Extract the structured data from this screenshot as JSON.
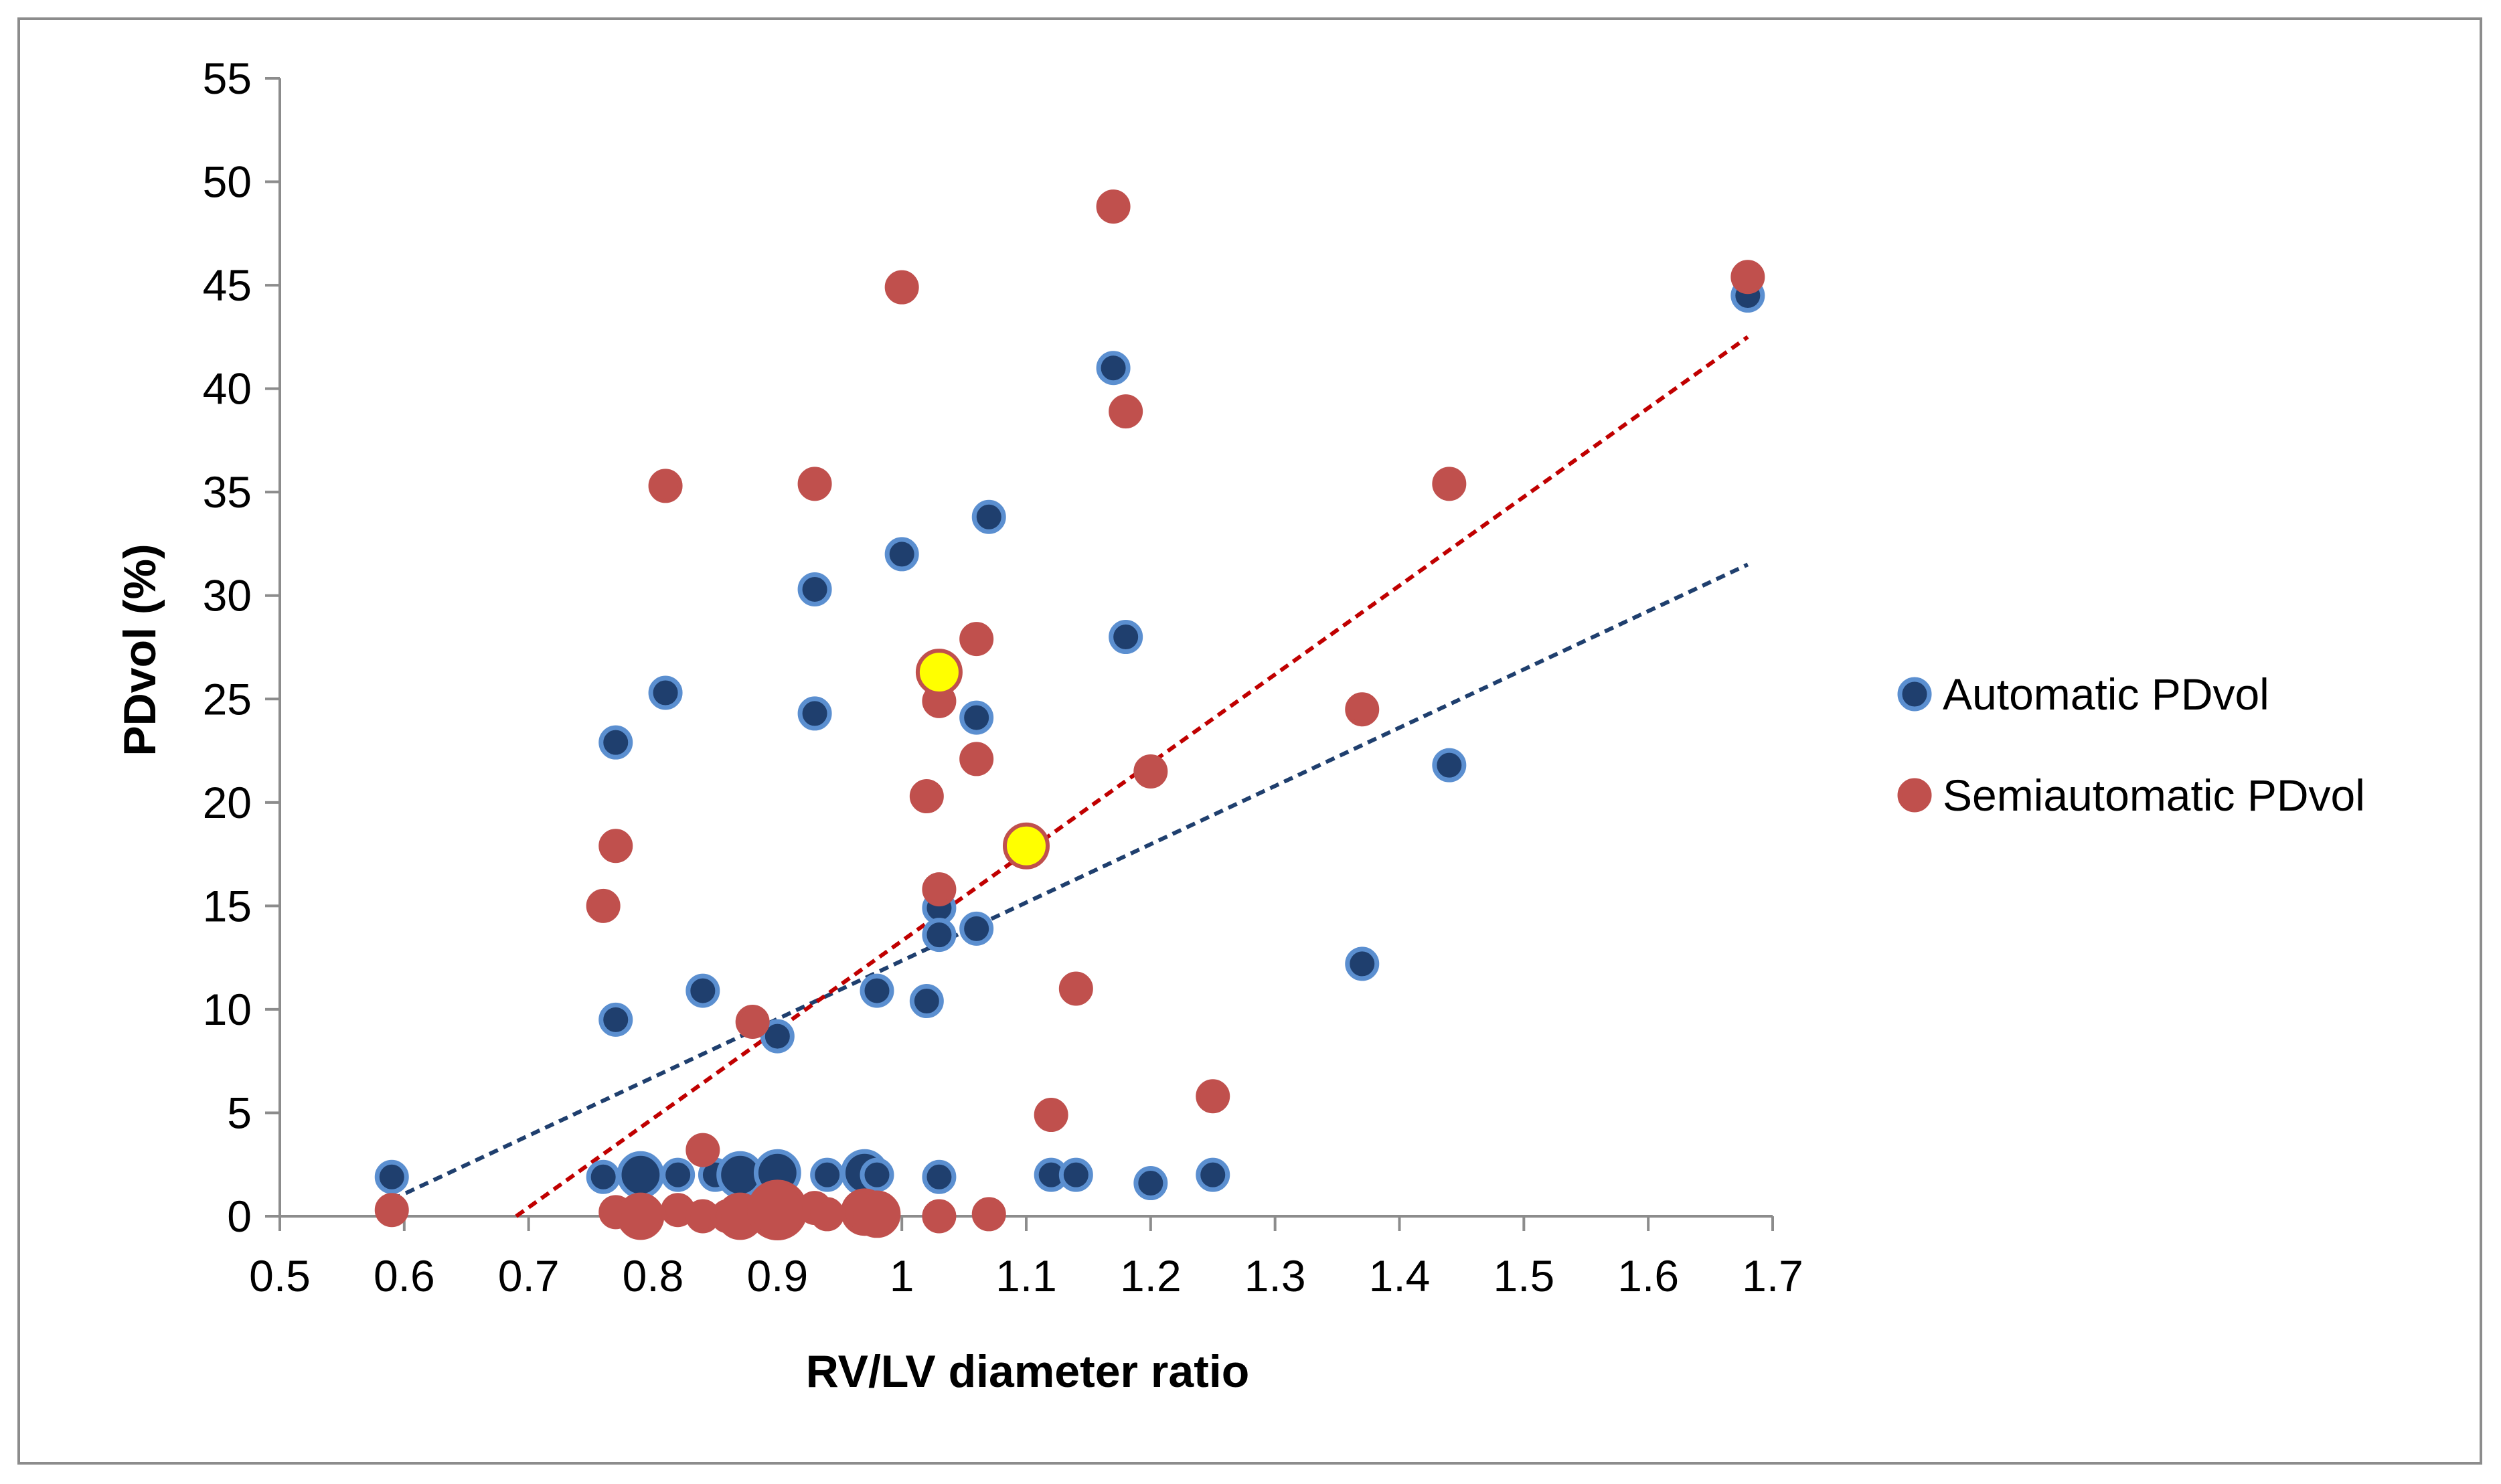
{
  "chart_data": {
    "type": "scatter",
    "title": "",
    "xlabel": "RV/LV diameter ratio",
    "ylabel": "PDvol (%)",
    "xlim": [
      0.5,
      1.7
    ],
    "ylim": [
      0,
      55
    ],
    "x_ticks": [
      "0.5",
      "0.6",
      "0.7",
      "0.8",
      "0.9",
      "1",
      "1.1",
      "1.2",
      "1.3",
      "1.4",
      "1.5",
      "1.6",
      "1.7"
    ],
    "y_ticks": [
      "0",
      "5",
      "10",
      "15",
      "20",
      "25",
      "30",
      "35",
      "40",
      "45",
      "50",
      "55"
    ],
    "grid": false,
    "legend_position": "right",
    "series": [
      {
        "name": "Automatic PDvol",
        "color": "#1f3f6e",
        "edge_color": "#5b8fd0",
        "trendline_color": "#1f3f6e",
        "trendline": {
          "x": [
            0.59,
            1.68
          ],
          "y": [
            0.8,
            31.5
          ]
        },
        "points": [
          {
            "x": 0.59,
            "y": 1.9,
            "size": 1
          },
          {
            "x": 0.76,
            "y": 1.9,
            "size": 1
          },
          {
            "x": 0.77,
            "y": 22.9,
            "size": 1
          },
          {
            "x": 0.77,
            "y": 9.5,
            "size": 1
          },
          {
            "x": 0.79,
            "y": 2.0,
            "size": 1.45
          },
          {
            "x": 0.81,
            "y": 25.3,
            "size": 1
          },
          {
            "x": 0.82,
            "y": 2.0,
            "size": 1
          },
          {
            "x": 0.84,
            "y": 10.9,
            "size": 1
          },
          {
            "x": 0.85,
            "y": 2.0,
            "size": 1
          },
          {
            "x": 0.87,
            "y": 2.0,
            "size": 1.45
          },
          {
            "x": 0.9,
            "y": 2.1,
            "size": 1.45
          },
          {
            "x": 0.9,
            "y": 8.7,
            "size": 1
          },
          {
            "x": 0.93,
            "y": 30.3,
            "size": 1
          },
          {
            "x": 0.93,
            "y": 24.3,
            "size": 1
          },
          {
            "x": 0.94,
            "y": 2.0,
            "size": 1
          },
          {
            "x": 0.97,
            "y": 2.1,
            "size": 1.45
          },
          {
            "x": 0.98,
            "y": 2.0,
            "size": 1
          },
          {
            "x": 0.98,
            "y": 10.9,
            "size": 1
          },
          {
            "x": 1.0,
            "y": 32.0,
            "size": 1
          },
          {
            "x": 1.02,
            "y": 10.4,
            "size": 1
          },
          {
            "x": 1.03,
            "y": 14.9,
            "size": 1
          },
          {
            "x": 1.03,
            "y": 13.6,
            "size": 1
          },
          {
            "x": 1.03,
            "y": 1.9,
            "size": 1
          },
          {
            "x": 1.06,
            "y": 24.1,
            "size": 1
          },
          {
            "x": 1.06,
            "y": 13.9,
            "size": 1
          },
          {
            "x": 1.07,
            "y": 33.8,
            "size": 1
          },
          {
            "x": 1.12,
            "y": 2.0,
            "size": 1
          },
          {
            "x": 1.14,
            "y": 2.0,
            "size": 1
          },
          {
            "x": 1.17,
            "y": 41.0,
            "size": 1
          },
          {
            "x": 1.18,
            "y": 28.0,
            "size": 1
          },
          {
            "x": 1.2,
            "y": 1.6,
            "size": 1
          },
          {
            "x": 1.25,
            "y": 2.0,
            "size": 1
          },
          {
            "x": 1.37,
            "y": 12.2,
            "size": 1
          },
          {
            "x": 1.44,
            "y": 21.8,
            "size": 1
          },
          {
            "x": 1.68,
            "y": 44.5,
            "size": 1
          }
        ]
      },
      {
        "name": "Semiautomatic PDvol",
        "color": "#c0504d",
        "edge_color": "#c0504d",
        "trendline_color": "#c00000",
        "trendline": {
          "x": [
            0.69,
            1.68
          ],
          "y": [
            0.0,
            42.5
          ]
        },
        "points": [
          {
            "x": 0.59,
            "y": 0.3,
            "size": 1
          },
          {
            "x": 0.76,
            "y": 15.0,
            "size": 1
          },
          {
            "x": 0.77,
            "y": 17.9,
            "size": 1
          },
          {
            "x": 0.77,
            "y": 0.2,
            "size": 1
          },
          {
            "x": 0.79,
            "y": 0.0,
            "size": 1.45
          },
          {
            "x": 0.81,
            "y": 35.3,
            "size": 1
          },
          {
            "x": 0.82,
            "y": 0.3,
            "size": 1
          },
          {
            "x": 0.84,
            "y": 3.2,
            "size": 1
          },
          {
            "x": 0.84,
            "y": 0.0,
            "size": 1
          },
          {
            "x": 0.86,
            "y": 0.0,
            "size": 1
          },
          {
            "x": 0.87,
            "y": 0.0,
            "size": 1.45
          },
          {
            "x": 0.88,
            "y": 9.4,
            "size": 1
          },
          {
            "x": 0.9,
            "y": 0.3,
            "size": 1.9
          },
          {
            "x": 0.93,
            "y": 35.4,
            "size": 1
          },
          {
            "x": 0.93,
            "y": 0.4,
            "size": 1
          },
          {
            "x": 0.94,
            "y": 0.1,
            "size": 1
          },
          {
            "x": 0.97,
            "y": 0.2,
            "size": 1.45
          },
          {
            "x": 0.98,
            "y": 0.1,
            "size": 1.45
          },
          {
            "x": 1.0,
            "y": 44.9,
            "size": 1
          },
          {
            "x": 1.02,
            "y": 20.3,
            "size": 1
          },
          {
            "x": 1.03,
            "y": 24.9,
            "size": 1
          },
          {
            "x": 1.03,
            "y": 15.8,
            "size": 1
          },
          {
            "x": 1.03,
            "y": 0.0,
            "size": 1
          },
          {
            "x": 1.06,
            "y": 27.9,
            "size": 1
          },
          {
            "x": 1.06,
            "y": 22.1,
            "size": 1
          },
          {
            "x": 1.07,
            "y": 0.1,
            "size": 1
          },
          {
            "x": 1.12,
            "y": 4.9,
            "size": 1
          },
          {
            "x": 1.14,
            "y": 11.0,
            "size": 1
          },
          {
            "x": 1.17,
            "y": 48.8,
            "size": 1
          },
          {
            "x": 1.18,
            "y": 38.9,
            "size": 1
          },
          {
            "x": 1.2,
            "y": 21.5,
            "size": 1
          },
          {
            "x": 1.25,
            "y": 5.8,
            "size": 1
          },
          {
            "x": 1.37,
            "y": 24.5,
            "size": 1
          },
          {
            "x": 1.44,
            "y": 35.4,
            "size": 1
          },
          {
            "x": 1.68,
            "y": 45.4,
            "size": 1
          }
        ]
      }
    ],
    "highlighted_points": {
      "color": "#ffff00",
      "edge_color": "#c0504d",
      "points": [
        {
          "x": 1.03,
          "y": 26.3
        },
        {
          "x": 1.1,
          "y": 17.9
        }
      ]
    }
  }
}
